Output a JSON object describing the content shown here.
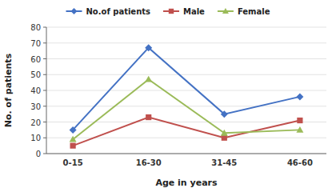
{
  "chart_data": {
    "type": "line",
    "categories": [
      "0-15",
      "16-30",
      "31-45",
      "46-60"
    ],
    "series": [
      {
        "name": "No.of patients",
        "color": "#4472C4",
        "marker": "diamond",
        "values": [
          15,
          67,
          25,
          36
        ]
      },
      {
        "name": "Male",
        "color": "#C0504D",
        "marker": "square",
        "values": [
          5,
          23,
          10,
          21
        ]
      },
      {
        "name": "Female",
        "color": "#9BBB59",
        "marker": "triangle",
        "values": [
          9,
          47,
          13,
          15
        ]
      }
    ],
    "xlabel": "Age in years",
    "ylabel": "No. of patients",
    "ylim": [
      0,
      80
    ],
    "yticks": [
      0,
      10,
      20,
      30,
      40,
      50,
      60,
      70,
      80
    ],
    "grid": true,
    "legend": "top"
  }
}
